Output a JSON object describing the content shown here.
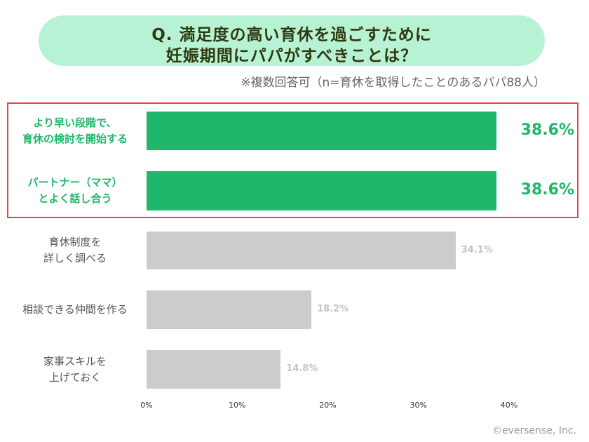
{
  "chart_data": {
    "type": "bar",
    "orientation": "horizontal",
    "title": [
      "Q. 満足度の高い育休を過ごすために",
      "妊娠期間にパパがすべきことは？"
    ],
    "subtitle": "※複数回答可（n=育休を取得したことのあるパパ88人）",
    "categories": [
      [
        "より早い段階で、",
        "育休の検討を開始する"
      ],
      [
        "パートナー（ママ）",
        "とよく話し合う"
      ],
      [
        "育休制度を",
        "詳しく調べる"
      ],
      [
        "相談できる仲間を作る"
      ],
      [
        "家事スキルを",
        "上げておく"
      ]
    ],
    "values": [
      38.6,
      38.6,
      34.1,
      18.2,
      14.8
    ],
    "value_labels": [
      "38.6%",
      "38.6%",
      "34.1%",
      "18.2%",
      "14.8%"
    ],
    "highlighted": [
      true,
      true,
      false,
      false,
      false
    ],
    "xlim": [
      0,
      40
    ],
    "xticks": [
      "0%",
      "10%",
      "20%",
      "30%",
      "40%"
    ],
    "grid": false,
    "colors": {
      "highlight": "#1fb769",
      "default": "#cccccc",
      "box": "#e0474c",
      "title_bg": "#b8f2d5"
    }
  },
  "credit": "©eversense, Inc."
}
